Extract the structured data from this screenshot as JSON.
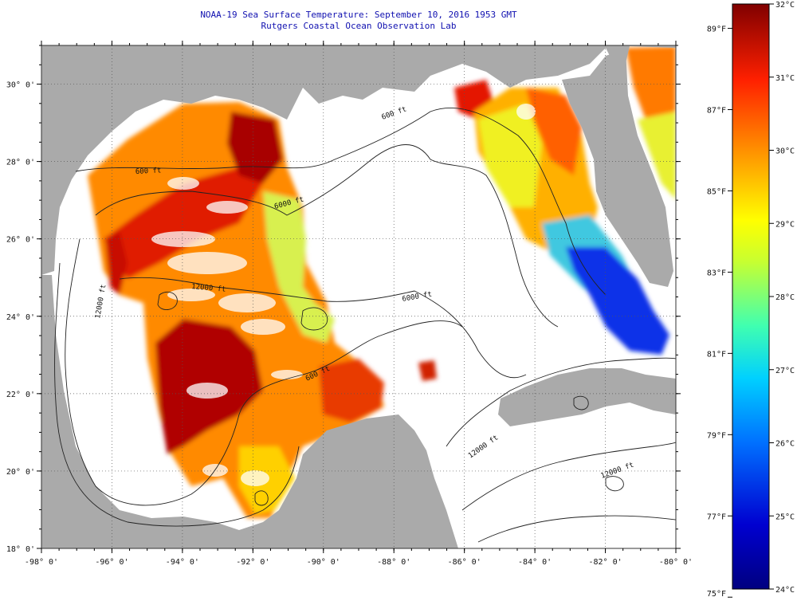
{
  "title": "NOAA-19 Sea Surface Temperature:  September 10, 2016 1953 GMT",
  "subtitle": "Rutgers Coastal Ocean Observation Lab",
  "colors": {
    "land": "#aaaaaa",
    "no_data": "#ffffff",
    "grid": "#555555",
    "title_text": "#1010b0"
  },
  "map": {
    "lon_range": [
      -98,
      -80
    ],
    "lat_range": [
      18,
      31
    ],
    "lon_ticks": [
      -98,
      -96,
      -94,
      -92,
      -90,
      -88,
      -86,
      -84,
      -82,
      -80
    ],
    "lon_tick_labels": [
      "-98° 0'",
      "-96° 0'",
      "-94° 0'",
      "-92° 0'",
      "-90° 0'",
      "-88° 0'",
      "-86° 0'",
      "-84° 0'",
      "-82° 0'",
      "-80° 0'"
    ],
    "lat_ticks": [
      18,
      20,
      22,
      24,
      26,
      28,
      30
    ],
    "lat_tick_labels": [
      "18° 0'",
      "20° 0'",
      "22° 0'",
      "24° 0'",
      "26° 0'",
      "28° 0'",
      "30° 0'"
    ],
    "contour_labels": [
      "600 ft",
      "600 ft",
      "12000 ft",
      "12000 ft",
      "6000 ft",
      "600 ft",
      "6000 ft",
      "12000 ft",
      "12000 ft"
    ]
  },
  "colorbar": {
    "celsius_range": [
      24,
      32
    ],
    "celsius_labels": [
      "32°C",
      "31°C",
      "30°C",
      "29°C",
      "28°C",
      "27°C",
      "26°C",
      "25°C",
      "24°C"
    ],
    "celsius_values": [
      32,
      31,
      30,
      29,
      28,
      27,
      26,
      25,
      24
    ],
    "fahrenheit_labels": [
      "89°F",
      "87°F",
      "85°F",
      "83°F",
      "81°F",
      "79°F",
      "77°F",
      "75°F"
    ],
    "fahrenheit_values": [
      89,
      87,
      85,
      83,
      81,
      79,
      77,
      75
    ]
  }
}
